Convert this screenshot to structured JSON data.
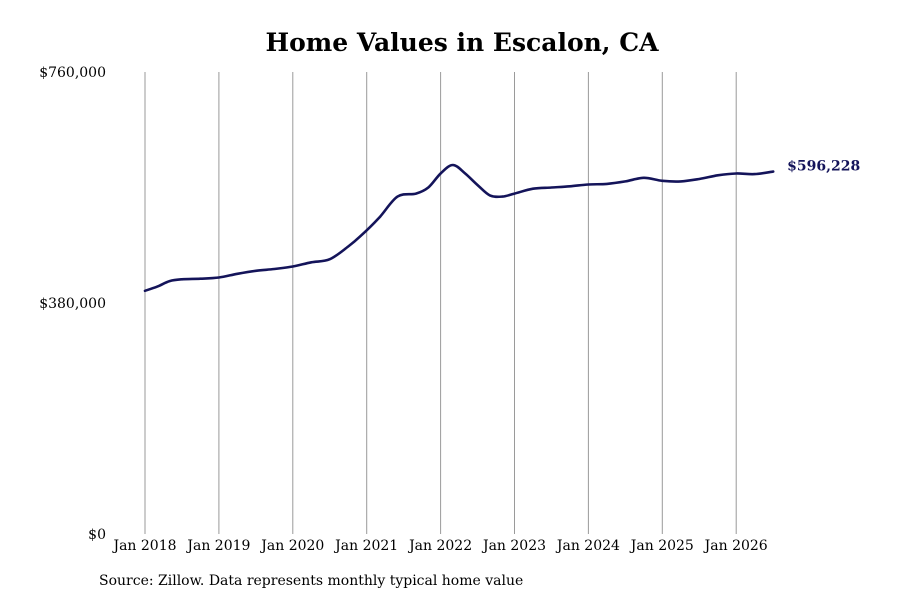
{
  "chart_data": {
    "type": "line",
    "title": "Home Values in Escalon, CA",
    "source": "Source: Zillow. Data represents monthly typical home value",
    "xlabel": "",
    "ylabel": "",
    "x_ticks": [
      "Jan 2018",
      "Jan 2019",
      "Jan 2020",
      "Jan 2021",
      "Jan 2022",
      "Jan 2023",
      "Jan 2024",
      "Jan 2025",
      "Jan 2026"
    ],
    "y_ticks": [
      "$0",
      "$380,000",
      "$760,000"
    ],
    "y_tick_values": [
      0,
      380000,
      760000
    ],
    "xlim": [
      "2018-01",
      "2026-07"
    ],
    "ylim": [
      0,
      760000
    ],
    "grid": "vertical",
    "line_color": "#14145a",
    "end_label": "$596,228",
    "series": [
      {
        "x": [
          "2018-01",
          "2018-03",
          "2018-05",
          "2018-07",
          "2018-10",
          "2019-01",
          "2019-04",
          "2019-07",
          "2019-10",
          "2020-01",
          "2020-04",
          "2020-07",
          "2020-10",
          "2020-12",
          "2021-03",
          "2021-06",
          "2021-09",
          "2021-11",
          "2022-01",
          "2022-03",
          "2022-05",
          "2022-07",
          "2022-09",
          "2022-11",
          "2023-01",
          "2023-04",
          "2023-07",
          "2023-10",
          "2024-01",
          "2024-04",
          "2024-07",
          "2024-10",
          "2025-01",
          "2025-04",
          "2025-07",
          "2025-10",
          "2026-01",
          "2026-04",
          "2026-07"
        ],
        "values": [
          400000,
          407000,
          416000,
          419000,
          420000,
          422000,
          428000,
          433000,
          436000,
          440000,
          447000,
          452000,
          473000,
          490000,
          520000,
          555000,
          560000,
          570000,
          593000,
          607000,
          593000,
          574000,
          557000,
          555000,
          560000,
          568000,
          570000,
          572000,
          575000,
          576000,
          580000,
          586000,
          581000,
          580000,
          584000,
          590000,
          593000,
          592000,
          596228
        ]
      }
    ]
  }
}
